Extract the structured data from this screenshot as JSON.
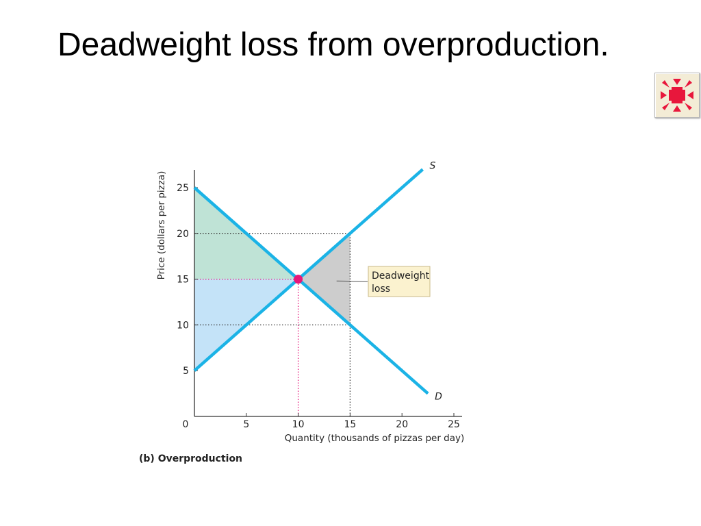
{
  "slide": {
    "title": "Deadweight loss from overproduction."
  },
  "nav_button": {
    "icon": "arrows-inward-icon",
    "colors": {
      "background": "#f3ecd6",
      "arrow": "#e8173c"
    }
  },
  "chart_data": {
    "type": "line",
    "title": "",
    "caption": "(b) Overproduction",
    "xlabel": "Quantity (thousands of pizzas per day)",
    "ylabel": "Price (dollars per pizza)",
    "xlim": [
      0,
      25
    ],
    "ylim": [
      0,
      25
    ],
    "x_ticks": [
      {
        "value": 0,
        "label": "0",
        "highlight": false
      },
      {
        "value": 5,
        "label": "5",
        "highlight": false
      },
      {
        "value": 10,
        "label": "10",
        "highlight": true
      },
      {
        "value": 15,
        "label": "15",
        "highlight": false
      },
      {
        "value": 20,
        "label": "20",
        "highlight": false
      },
      {
        "value": 25,
        "label": "25",
        "highlight": false
      }
    ],
    "y_ticks": [
      {
        "value": 5,
        "label": "5",
        "highlight": false
      },
      {
        "value": 10,
        "label": "10",
        "highlight": false
      },
      {
        "value": 15,
        "label": "15",
        "highlight": true
      },
      {
        "value": 20,
        "label": "20",
        "highlight": false
      },
      {
        "value": 25,
        "label": "25",
        "highlight": false
      }
    ],
    "grid": false,
    "series": [
      {
        "name": "S",
        "x": [
          0,
          22
        ],
        "y": [
          5,
          27
        ],
        "color": "#1bb3e6"
      },
      {
        "name": "D",
        "x": [
          0,
          22.5
        ],
        "y": [
          25,
          2.5
        ],
        "color": "#1bb3e6"
      }
    ],
    "equilibrium": {
      "x": 10,
      "y": 15,
      "color": "#e6177a"
    },
    "regions": [
      {
        "name": "consumer-surplus",
        "points": [
          [
            0,
            25
          ],
          [
            0,
            15
          ],
          [
            10,
            15
          ]
        ],
        "color": "#bfe3d6"
      },
      {
        "name": "producer-surplus",
        "points": [
          [
            0,
            15
          ],
          [
            0,
            5
          ],
          [
            10,
            15
          ]
        ],
        "color": "#c4e3f8"
      },
      {
        "name": "deadweight-loss",
        "points": [
          [
            10,
            15
          ],
          [
            15,
            20
          ],
          [
            15,
            10
          ]
        ],
        "color": "#cdcdcd"
      }
    ],
    "guides": [
      {
        "from": [
          0,
          20
        ],
        "to": [
          15,
          20
        ],
        "color": "#333333"
      },
      {
        "from": [
          0,
          10
        ],
        "to": [
          15,
          10
        ],
        "color": "#333333"
      },
      {
        "from": [
          15,
          0
        ],
        "to": [
          15,
          20
        ],
        "color": "#333333"
      },
      {
        "from": [
          0,
          15
        ],
        "to": [
          10,
          15
        ],
        "color": "#e6177a"
      },
      {
        "from": [
          10,
          0
        ],
        "to": [
          10,
          15
        ],
        "color": "#e6177a"
      }
    ],
    "annotation": {
      "lines": [
        "Deadweight",
        "loss"
      ],
      "target": [
        13.7,
        14.8
      ],
      "background": "#fbf2cf",
      "border": "#c9b98a"
    },
    "tick_highlight_color": "#e6177a"
  }
}
